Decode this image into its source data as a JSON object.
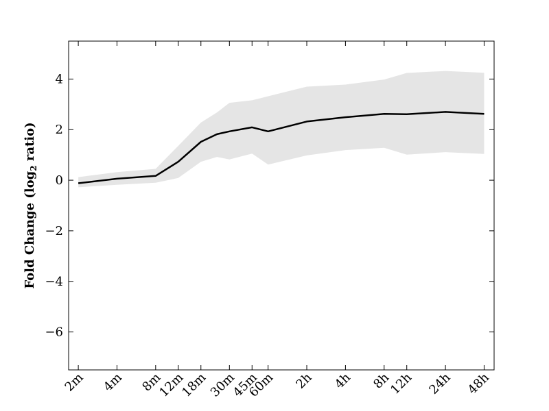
{
  "chart_data": {
    "type": "line",
    "title": "",
    "xlabel": "",
    "ylabel": "Fold Change (log",
    "ylabel_sub": "2",
    "ylabel_suffix": " ratio)",
    "categories": [
      "2m",
      "4m",
      "8m",
      "12m",
      "18m",
      "30m",
      "45m",
      "60m",
      "2h",
      "4h",
      "8h",
      "12h",
      "24h",
      "48h"
    ],
    "x_ticks": [
      {
        "label": "2m",
        "pos": 0
      },
      {
        "label": "4m",
        "pos": 1
      },
      {
        "label": "8m",
        "pos": 2
      },
      {
        "label": "12m",
        "pos": 2.585
      },
      {
        "label": "18m",
        "pos": 3.17
      },
      {
        "label": "30m",
        "pos": 3.907
      },
      {
        "label": "45m",
        "pos": 4.492
      },
      {
        "label": "60m",
        "pos": 4.907
      },
      {
        "label": "2h",
        "pos": 5.907
      },
      {
        "label": "4h",
        "pos": 6.907
      },
      {
        "label": "8h",
        "pos": 7.907
      },
      {
        "label": "12h",
        "pos": 8.492
      },
      {
        "label": "24h",
        "pos": 9.492
      },
      {
        "label": "48h",
        "pos": 10.492
      }
    ],
    "ylim": [
      -7.5,
      5.5
    ],
    "y_ticks": [
      4,
      2,
      0,
      -2,
      -4,
      -6
    ],
    "y_tick_labels": [
      "4",
      "2",
      "0",
      "−2",
      "−4",
      "−6"
    ],
    "grid": false,
    "series": [
      {
        "kind": "line",
        "color": "#000000",
        "x": [
          0,
          1,
          2,
          2.585,
          3.17,
          3.585,
          3.907,
          4.492,
          4.907,
          5.907,
          6.907,
          7.907,
          8.492,
          9.492,
          10.492
        ],
        "values": [
          -0.12,
          0.06,
          0.17,
          0.73,
          1.52,
          1.82,
          1.93,
          2.09,
          1.93,
          2.32,
          2.49,
          2.62,
          2.61,
          2.7,
          2.62
        ]
      },
      {
        "kind": "band",
        "color": "#e5e5e5",
        "x": [
          0,
          1,
          2,
          2.585,
          3.17,
          3.585,
          3.907,
          4.492,
          4.907,
          5.907,
          6.907,
          7.907,
          8.492,
          9.492,
          10.492
        ],
        "upper": [
          0.12,
          0.32,
          0.45,
          1.36,
          2.28,
          2.68,
          3.06,
          3.16,
          3.32,
          3.7,
          3.78,
          3.98,
          4.24,
          4.32,
          4.25
        ],
        "lower": [
          -0.28,
          -0.18,
          -0.1,
          0.09,
          0.73,
          0.92,
          0.82,
          1.05,
          0.62,
          0.98,
          1.19,
          1.28,
          1.01,
          1.11,
          1.04
        ]
      }
    ]
  }
}
